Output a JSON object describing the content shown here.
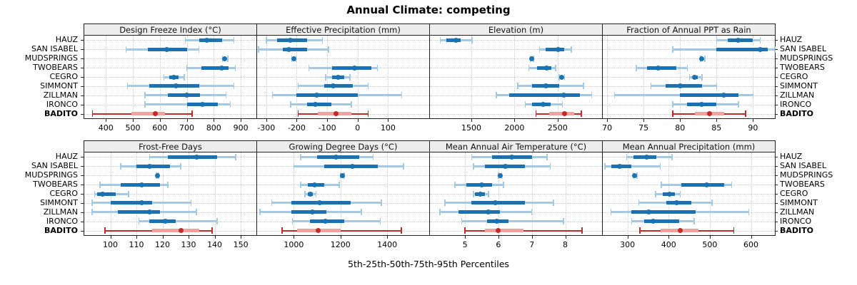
{
  "title": "Annual Climate: competing",
  "caption": "5th-25th-50th-75th-95th Percentiles",
  "sites": [
    "HAUZ",
    "SAN ISABEL",
    "MUDSPRINGS",
    "TWOBEARS",
    "CEGRO",
    "SIMMONT",
    "ZILLMAN",
    "IRONCO",
    "BADITO"
  ],
  "highlight_site": "BADITO",
  "colors": {
    "series_dark_blue": "#1b72b2",
    "series_light_blue": "#a3c9e3",
    "highlight_dark_red": "#bf2c29",
    "highlight_light_red": "#f0a29e",
    "strip_bg": "#ededed",
    "grid": "#c9c9c9",
    "border": "#222222"
  },
  "chart_data": {
    "type": "dotplot-percentiles",
    "description": "Each row shows 5th-25th-50th-75th-95th percentiles per site; BADITO highlighted in red",
    "percentile_labels": [
      "5th",
      "25th",
      "50th",
      "75th",
      "95th"
    ],
    "grid": "dotted",
    "legend_position": "none",
    "panels": [
      {
        "label": "Design Freeze Index (°C)",
        "row": 0,
        "col": 0,
        "domain": [
          320,
          958
        ],
        "ticks": [
          400,
          500,
          600,
          700,
          800,
          900
        ],
        "series": [
          [
            695,
            745,
            775,
            830,
            875
          ],
          [
            475,
            555,
            625,
            700,
            745
          ],
          [
            832,
            838,
            841,
            846,
            852
          ],
          [
            700,
            755,
            830,
            855,
            880
          ],
          [
            615,
            635,
            652,
            670,
            690
          ],
          [
            480,
            560,
            660,
            745,
            875
          ],
          [
            545,
            630,
            700,
            750,
            845
          ],
          [
            545,
            700,
            757,
            815,
            862
          ],
          [
            350,
            495,
            583,
            620,
            720
          ]
        ]
      },
      {
        "label": "Effective Precipitation (mm)",
        "row": 0,
        "col": 1,
        "domain": [
          -330,
          235
        ],
        "ticks": [
          -300,
          -200,
          -100,
          0,
          100
        ],
        "series": [
          [
            -300,
            -265,
            -220,
            -165,
            -115
          ],
          [
            -325,
            -245,
            -225,
            -165,
            -95
          ],
          [
            -216,
            -212,
            -209,
            -206,
            -202
          ],
          [
            -160,
            -85,
            -10,
            45,
            65
          ],
          [
            -105,
            -85,
            -65,
            -45,
            -25
          ],
          [
            -195,
            -110,
            -80,
            -15,
            35
          ],
          [
            -280,
            -200,
            -135,
            0,
            145
          ],
          [
            -220,
            -165,
            -140,
            -85,
            -20
          ],
          [
            -195,
            -130,
            -70,
            -20,
            35
          ]
        ]
      },
      {
        "label": "Elevation (m)",
        "row": 0,
        "col": 2,
        "domain": [
          1020,
          3015
        ],
        "ticks": [
          1500,
          2000,
          2500
        ],
        "series": [
          [
            1140,
            1210,
            1320,
            1380,
            1510
          ],
          [
            2290,
            2365,
            2505,
            2575,
            2660
          ],
          [
            2185,
            2195,
            2200,
            2210,
            2220
          ],
          [
            2165,
            2265,
            2375,
            2430,
            2475
          ],
          [
            2520,
            2535,
            2550,
            2565,
            2580
          ],
          [
            2040,
            2200,
            2365,
            2515,
            2800
          ],
          [
            1790,
            1940,
            2575,
            2760,
            2895
          ],
          [
            2125,
            2200,
            2335,
            2420,
            2555
          ],
          [
            2250,
            2405,
            2580,
            2690,
            2775
          ]
        ]
      },
      {
        "label": "Fraction of Annual PPT as Rain",
        "row": 0,
        "col": 3,
        "domain": [
          69.4,
          93
        ],
        "ticks": [
          70,
          75,
          80,
          85,
          90
        ],
        "series": [
          [
            85,
            86.5,
            88,
            90,
            91
          ],
          [
            79,
            85,
            91,
            92,
            93
          ],
          [
            82.8,
            82.9,
            83,
            83.2,
            83.4
          ],
          [
            74,
            75.5,
            77,
            79.5,
            81
          ],
          [
            81.3,
            81.7,
            82,
            82.4,
            83
          ],
          [
            76,
            78,
            80,
            83,
            85
          ],
          [
            71,
            80,
            86,
            88,
            90
          ],
          [
            79,
            81,
            83,
            85,
            88
          ],
          [
            79,
            82,
            84,
            86,
            89
          ]
        ]
      },
      {
        "label": "Frost-Free Days",
        "row": 1,
        "col": 0,
        "domain": [
          90,
          156
        ],
        "ticks": [
          100,
          110,
          120,
          130,
          140,
          150
        ],
        "series": [
          [
            115,
            122,
            133,
            141,
            148
          ],
          [
            104,
            110,
            115,
            123,
            127
          ],
          [
            117.6,
            117.8,
            118,
            118.2,
            118.5
          ],
          [
            96,
            104,
            112,
            119,
            122
          ],
          [
            94,
            95,
            97,
            102,
            107
          ],
          [
            93,
            100,
            112,
            116,
            131
          ],
          [
            93,
            103,
            115,
            119,
            133
          ],
          [
            111,
            115,
            121,
            125,
            141
          ],
          [
            98,
            116,
            127,
            134,
            139
          ]
        ]
      },
      {
        "label": "Growing Degree Days (°C)",
        "row": 1,
        "col": 1,
        "domain": [
          843,
          1580
        ],
        "ticks": [
          1000,
          1200,
          1400
        ],
        "series": [
          [
            1030,
            1100,
            1180,
            1280,
            1340
          ],
          [
            1000,
            1130,
            1250,
            1360,
            1470
          ],
          [
            1200,
            1204,
            1208,
            1212,
            1216
          ],
          [
            1030,
            1060,
            1090,
            1130,
            1195
          ],
          [
            1048,
            1060,
            1070,
            1082,
            1095
          ],
          [
            905,
            990,
            1110,
            1245,
            1375
          ],
          [
            855,
            990,
            1080,
            1140,
            1290
          ],
          [
            995,
            1070,
            1135,
            1215,
            1370
          ],
          [
            950,
            1015,
            1105,
            1200,
            1460
          ]
        ]
      },
      {
        "label": "Mean Annual Air Temperature (°C)",
        "row": 1,
        "col": 2,
        "domain": [
          3.95,
          9.1
        ],
        "ticks": [
          5,
          6,
          7,
          8
        ],
        "series": [
          [
            5.2,
            5.8,
            6.4,
            7.0,
            7.45
          ],
          [
            5.25,
            5.6,
            6.2,
            6.8,
            7.55
          ],
          [
            6.0,
            6.02,
            6.05,
            6.08,
            6.1
          ],
          [
            4.7,
            5.05,
            5.5,
            5.8,
            6.15
          ],
          [
            5.25,
            5.3,
            5.45,
            5.6,
            5.7
          ],
          [
            4.4,
            5.2,
            5.9,
            6.8,
            7.65
          ],
          [
            4.25,
            4.8,
            5.7,
            6.05,
            7.0
          ],
          [
            4.9,
            5.65,
            5.95,
            6.3,
            7.95
          ],
          [
            5.0,
            5.6,
            6.0,
            6.75,
            8.5
          ]
        ]
      },
      {
        "label": "Mean Annual Precipitation (mm)",
        "row": 1,
        "col": 3,
        "domain": [
          240,
          658
        ],
        "ticks": [
          300,
          400,
          500,
          600
        ],
        "series": [
          [
            298,
            315,
            347,
            370,
            408
          ],
          [
            245,
            260,
            280,
            310,
            380
          ],
          [
            314,
            316,
            318,
            320,
            323
          ],
          [
            382,
            430,
            492,
            535,
            553
          ],
          [
            368,
            385,
            402,
            415,
            428
          ],
          [
            328,
            395,
            420,
            455,
            505
          ],
          [
            260,
            310,
            352,
            465,
            595
          ],
          [
            310,
            340,
            363,
            425,
            462
          ],
          [
            330,
            380,
            428,
            472,
            558
          ]
        ]
      }
    ]
  }
}
